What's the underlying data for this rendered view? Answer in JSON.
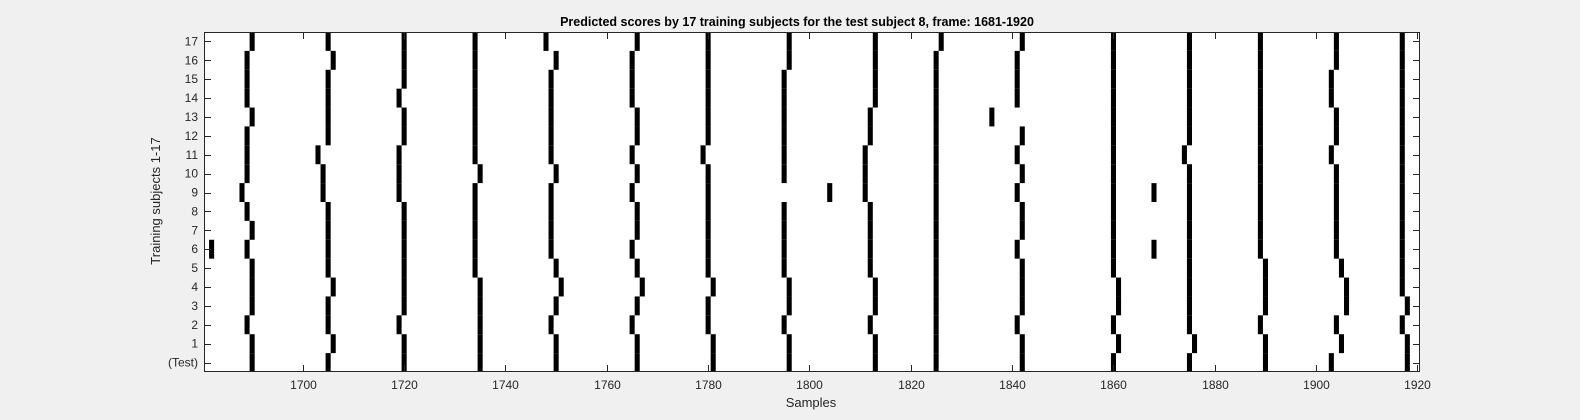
{
  "chart_data": {
    "type": "heatmap",
    "title": "Predicted scores by 17 training subjects for the test subject 8, frame: 1681-1920",
    "xlabel": "Samples",
    "ylabel": "Training subjects 1-17",
    "xlim": [
      1681,
      1920
    ],
    "x_ticks": [
      1700,
      1720,
      1740,
      1760,
      1780,
      1800,
      1820,
      1840,
      1860,
      1880,
      1900,
      1920
    ],
    "rows": [
      "(Test)",
      "1",
      "2",
      "3",
      "4",
      "5",
      "6",
      "7",
      "8",
      "9",
      "10",
      "11",
      "12",
      "13",
      "14",
      "15",
      "16",
      "17"
    ],
    "mark_color": "#000000",
    "background_color": "#ffffff",
    "grid": false,
    "marks": [
      {
        "row": "(Test)",
        "samples": [
          1690,
          1705,
          1720,
          1735,
          1750,
          1766,
          1781,
          1796,
          1813,
          1825,
          1842,
          1860,
          1875,
          1890,
          1903,
          1918
        ]
      },
      {
        "row": "1",
        "samples": [
          1690,
          1706,
          1720,
          1735,
          1750,
          1766,
          1781,
          1796,
          1813,
          1825,
          1842,
          1861,
          1876,
          1890,
          1905,
          1918
        ]
      },
      {
        "row": "2",
        "samples": [
          1689,
          1705,
          1719,
          1735,
          1749,
          1765,
          1780,
          1795,
          1812,
          1825,
          1841,
          1860,
          1875,
          1889,
          1904,
          1917
        ]
      },
      {
        "row": "3",
        "samples": [
          1690,
          1705,
          1720,
          1735,
          1750,
          1766,
          1780,
          1796,
          1813,
          1825,
          1842,
          1861,
          1875,
          1890,
          1906,
          1918
        ]
      },
      {
        "row": "4",
        "samples": [
          1690,
          1706,
          1720,
          1735,
          1751,
          1767,
          1781,
          1796,
          1813,
          1825,
          1842,
          1861,
          1875,
          1890,
          1906,
          1917
        ]
      },
      {
        "row": "5",
        "samples": [
          1690,
          1705,
          1720,
          1734,
          1750,
          1766,
          1780,
          1795,
          1812,
          1825,
          1842,
          1860,
          1875,
          1890,
          1905,
          1917
        ]
      },
      {
        "row": "6",
        "samples": [
          1682,
          1689,
          1705,
          1720,
          1734,
          1749,
          1765,
          1780,
          1795,
          1812,
          1825,
          1841,
          1860,
          1868,
          1875,
          1889,
          1904,
          1917
        ]
      },
      {
        "row": "7",
        "samples": [
          1690,
          1705,
          1720,
          1734,
          1749,
          1766,
          1780,
          1795,
          1812,
          1825,
          1842,
          1860,
          1875,
          1889,
          1904,
          1917
        ]
      },
      {
        "row": "8",
        "samples": [
          1689,
          1705,
          1720,
          1734,
          1749,
          1766,
          1780,
          1795,
          1812,
          1825,
          1842,
          1860,
          1875,
          1889,
          1904,
          1917
        ]
      },
      {
        "row": "9",
        "samples": [
          1688,
          1704,
          1719,
          1734,
          1749,
          1765,
          1780,
          1804,
          1811,
          1825,
          1841,
          1860,
          1868,
          1875,
          1889,
          1904,
          1917
        ]
      },
      {
        "row": "10",
        "samples": [
          1689,
          1704,
          1719,
          1735,
          1750,
          1766,
          1780,
          1795,
          1811,
          1825,
          1842,
          1860,
          1875,
          1889,
          1904,
          1917
        ]
      },
      {
        "row": "11",
        "samples": [
          1689,
          1703,
          1719,
          1734,
          1749,
          1765,
          1779,
          1795,
          1811,
          1825,
          1841,
          1860,
          1874,
          1889,
          1903,
          1917
        ]
      },
      {
        "row": "12",
        "samples": [
          1689,
          1705,
          1720,
          1734,
          1749,
          1766,
          1780,
          1795,
          1812,
          1825,
          1842,
          1860,
          1875,
          1889,
          1904,
          1917
        ]
      },
      {
        "row": "13",
        "samples": [
          1690,
          1705,
          1720,
          1734,
          1749,
          1766,
          1780,
          1795,
          1812,
          1825,
          1836,
          1860,
          1875,
          1889,
          1904,
          1917
        ]
      },
      {
        "row": "14",
        "samples": [
          1689,
          1705,
          1719,
          1734,
          1749,
          1765,
          1780,
          1795,
          1813,
          1825,
          1841,
          1860,
          1875,
          1889,
          1903,
          1917
        ]
      },
      {
        "row": "15",
        "samples": [
          1689,
          1705,
          1720,
          1734,
          1749,
          1765,
          1780,
          1795,
          1813,
          1825,
          1841,
          1860,
          1875,
          1889,
          1903,
          1917
        ]
      },
      {
        "row": "16",
        "samples": [
          1689,
          1706,
          1720,
          1734,
          1750,
          1765,
          1780,
          1796,
          1813,
          1825,
          1841,
          1860,
          1875,
          1889,
          1904,
          1917
        ]
      },
      {
        "row": "17",
        "samples": [
          1690,
          1705,
          1720,
          1734,
          1748,
          1766,
          1780,
          1796,
          1813,
          1826,
          1842,
          1860,
          1875,
          1889,
          1904,
          1917
        ]
      }
    ]
  }
}
